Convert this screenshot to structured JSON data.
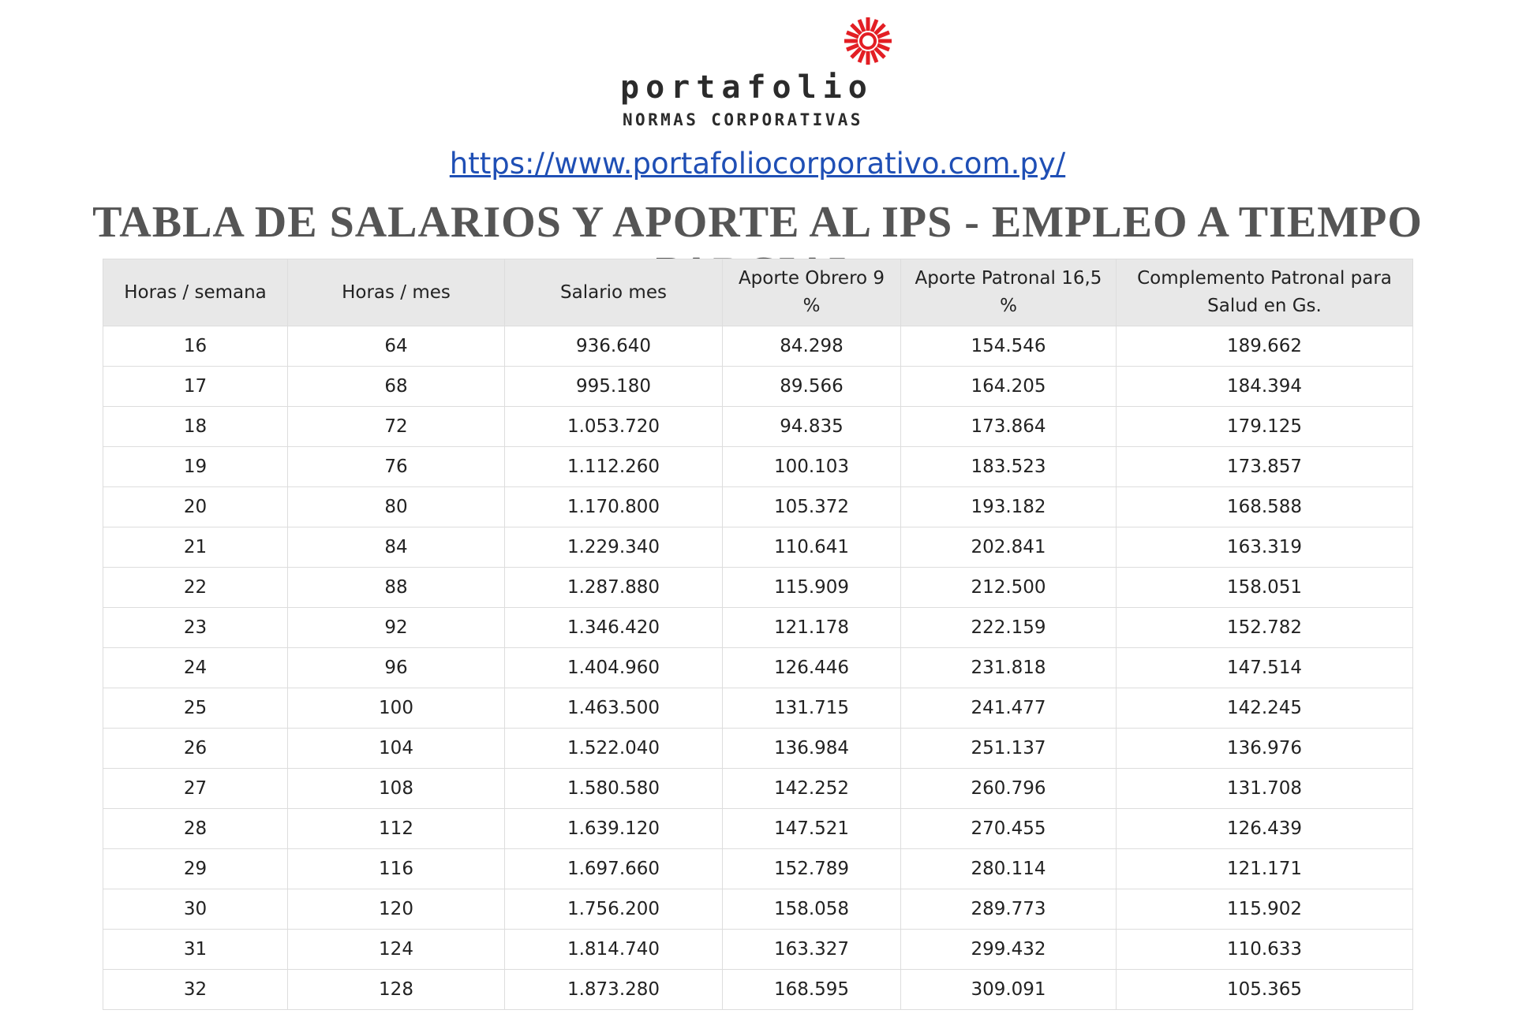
{
  "header": {
    "brand": "portafolio",
    "tagline": "NORMAS CORPORATIVAS",
    "url": "https://www.portafoliocorporativo.com.py/",
    "title": "TABLA DE SALARIOS Y APORTE AL IPS - EMPLEO A TIEMPO PARCIAL"
  },
  "table": {
    "columns": [
      "Horas / semana",
      "Horas / mes",
      "Salario mes",
      "Aporte Obrero 9 %",
      "Aporte Patronal 16,5 %",
      "Complemento Patronal para Salud en Gs."
    ],
    "rows": [
      [
        "16",
        "64",
        "936.640",
        "84.298",
        "154.546",
        "189.662"
      ],
      [
        "17",
        "68",
        "995.180",
        "89.566",
        "164.205",
        "184.394"
      ],
      [
        "18",
        "72",
        "1.053.720",
        "94.835",
        "173.864",
        "179.125"
      ],
      [
        "19",
        "76",
        "1.112.260",
        "100.103",
        "183.523",
        "173.857"
      ],
      [
        "20",
        "80",
        "1.170.800",
        "105.372",
        "193.182",
        "168.588"
      ],
      [
        "21",
        "84",
        "1.229.340",
        "110.641",
        "202.841",
        "163.319"
      ],
      [
        "22",
        "88",
        "1.287.880",
        "115.909",
        "212.500",
        "158.051"
      ],
      [
        "23",
        "92",
        "1.346.420",
        "121.178",
        "222.159",
        "152.782"
      ],
      [
        "24",
        "96",
        "1.404.960",
        "126.446",
        "231.818",
        "147.514"
      ],
      [
        "25",
        "100",
        "1.463.500",
        "131.715",
        "241.477",
        "142.245"
      ],
      [
        "26",
        "104",
        "1.522.040",
        "136.984",
        "251.137",
        "136.976"
      ],
      [
        "27",
        "108",
        "1.580.580",
        "142.252",
        "260.796",
        "131.708"
      ],
      [
        "28",
        "112",
        "1.639.120",
        "147.521",
        "270.455",
        "126.439"
      ],
      [
        "29",
        "116",
        "1.697.660",
        "152.789",
        "280.114",
        "121.171"
      ],
      [
        "30",
        "120",
        "1.756.200",
        "158.058",
        "289.773",
        "115.902"
      ],
      [
        "31",
        "124",
        "1.814.740",
        "163.327",
        "299.432",
        "110.633"
      ],
      [
        "32",
        "128",
        "1.873.280",
        "168.595",
        "309.091",
        "105.365"
      ]
    ]
  }
}
